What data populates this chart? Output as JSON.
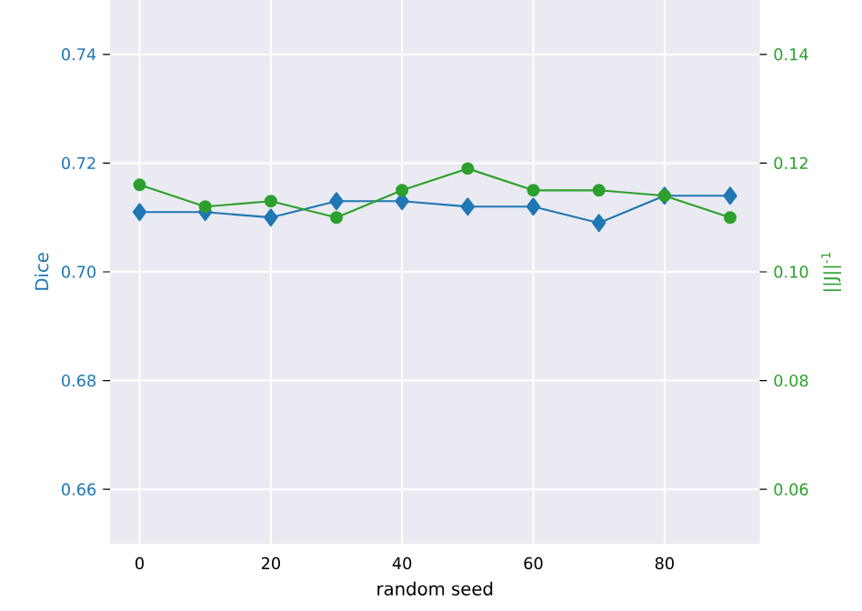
{
  "chart_data": {
    "type": "line",
    "xlabel": "random seed",
    "ylabel": "Dice",
    "y2label": "||J||$^{-1}$",
    "x": [
      0,
      10,
      20,
      30,
      40,
      50,
      60,
      70,
      80,
      90
    ],
    "series": [
      {
        "color": "#1f77b4",
        "marker": "diamond",
        "values": [
          0.711,
          0.711,
          0.71,
          0.713,
          0.713,
          0.712,
          0.712,
          0.709,
          0.714,
          0.714
        ]
      },
      {
        "color": "#2ca02c",
        "marker": "circle",
        "axis": "y2",
        "values": [
          0.116,
          0.112,
          0.113,
          0.11,
          0.115,
          0.119,
          0.115,
          0.115,
          0.114,
          0.11
        ]
      }
    ],
    "xlim": [
      -4.5,
      94.5
    ],
    "xticks": [
      0,
      20,
      40,
      60,
      80
    ],
    "ylim": [
      0.65,
      0.75
    ],
    "yticks": [
      {
        "value": 0.66,
        "label": "0.66"
      },
      {
        "value": 0.68,
        "label": "0.68"
      },
      {
        "value": 0.7,
        "label": "0.70"
      },
      {
        "value": 0.72,
        "label": "0.72"
      },
      {
        "value": 0.74,
        "label": "0.74"
      }
    ],
    "y2lim": [
      0.05,
      0.15
    ],
    "y2ticks": [
      {
        "value": 0.06,
        "label": "0.06"
      },
      {
        "value": 0.08,
        "label": "0.08"
      },
      {
        "value": 0.1,
        "label": "0.10"
      },
      {
        "value": 0.12,
        "label": "0.12"
      },
      {
        "value": 0.14,
        "label": "0.14"
      }
    ],
    "grid": true,
    "line_style": "solid"
  }
}
